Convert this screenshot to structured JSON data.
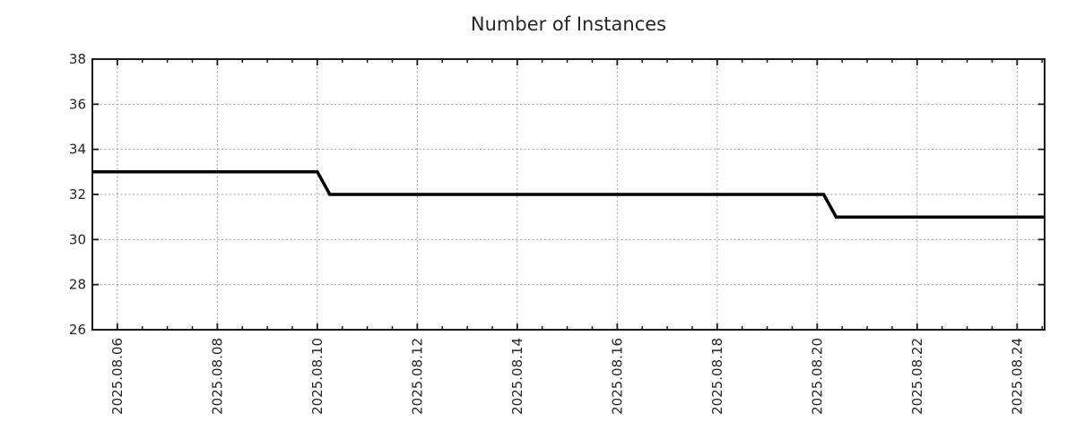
{
  "chart_data": {
    "type": "line",
    "title": "Number of Instances",
    "xlabel": "",
    "ylabel": "",
    "legend": {
      "show": false
    },
    "grid": {
      "show": true,
      "style": "dotted",
      "color": "#9e9e9e"
    },
    "x_axis": {
      "kind": "date",
      "epoch_day0": "2025-08-05",
      "range_days": [
        0.5,
        19.55
      ],
      "major_tick_days": [
        1,
        3,
        5,
        7,
        9,
        11,
        13,
        15,
        17,
        19
      ],
      "major_tick_labels": [
        "2025.08.06",
        "2025.08.08",
        "2025.08.10",
        "2025.08.12",
        "2025.08.14",
        "2025.08.16",
        "2025.08.18",
        "2025.08.20",
        "2025.08.22",
        "2025.08.24"
      ],
      "minor_tick_step_days": 0.5,
      "label_rotation_deg": -90
    },
    "y_axis": {
      "range": [
        26,
        38
      ],
      "ticks": [
        26,
        28,
        30,
        32,
        34,
        36,
        38
      ]
    },
    "series": [
      {
        "name": "instances",
        "color": "#000000",
        "line_width": 3.5,
        "points_day_value": [
          [
            0.5,
            33
          ],
          [
            5.0,
            33
          ],
          [
            5.25,
            32
          ],
          [
            15.13,
            32
          ],
          [
            15.38,
            31
          ],
          [
            19.55,
            31
          ]
        ]
      }
    ],
    "steps_readout": [
      {
        "date": "2025.08.10",
        "from": 33,
        "to": 32
      },
      {
        "date": "2025.08.20",
        "from": 32,
        "to": 31
      }
    ]
  },
  "colors": {
    "background": "#ffffff",
    "axis": "#1a1a1a",
    "text": "#262626",
    "grid": "#9e9e9e",
    "line": "#000000"
  }
}
